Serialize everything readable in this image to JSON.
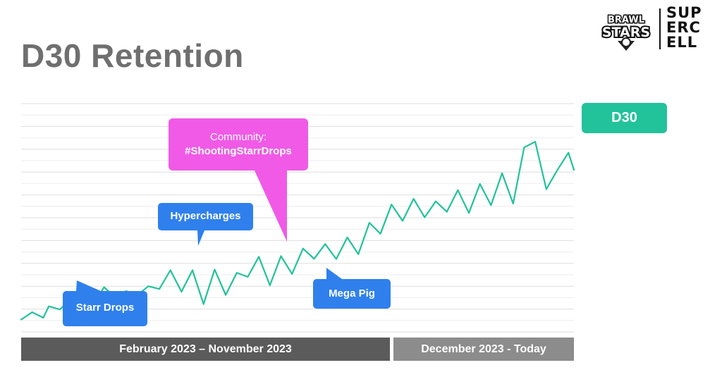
{
  "title": "D30 Retention",
  "logos": {
    "brawl_stars": [
      "BRAWL",
      "STARS"
    ],
    "supercell": [
      "SUP",
      "ERC",
      "ELL"
    ]
  },
  "legend": {
    "label": "D30",
    "color": "#22c29a"
  },
  "callouts": [
    {
      "id": "hypercharges",
      "text": "Hypercharges",
      "color": "#2f80ed"
    },
    {
      "id": "community",
      "line1": "Community:",
      "line2": "#ShootingStarrDrops",
      "color": "#f05ae6"
    },
    {
      "id": "starr-drops",
      "text": "Starr Drops",
      "color": "#2f80ed"
    },
    {
      "id": "mega-pig",
      "text": "Mega Pig",
      "color": "#2f80ed"
    }
  ],
  "periods": [
    {
      "label": "February 2023 – November 2023",
      "color": "#5b5b5b"
    },
    {
      "label": "December 2023 - Today",
      "color": "#8c8c8c"
    }
  ],
  "chart_data": {
    "type": "line",
    "title": "D30 Retention",
    "xlabel": "",
    "ylabel": "",
    "yticks_shown": false,
    "ylim": [
      0,
      100
    ],
    "grid": true,
    "legend_position": "right",
    "series": [
      {
        "name": "D30",
        "color": "#22c29a",
        "x": [
          0,
          2,
          4,
          5,
          7,
          9,
          11,
          13,
          15,
          17,
          19,
          21,
          23,
          25,
          27,
          29,
          31,
          33,
          35,
          37,
          39,
          41,
          43,
          45,
          47,
          49,
          51,
          53,
          55,
          57,
          59,
          61,
          63,
          65,
          67,
          69,
          71,
          73,
          75,
          77,
          79,
          81,
          83,
          85,
          87,
          89,
          91,
          93,
          95,
          97,
          99,
          100
        ],
        "values": [
          5.4,
          8.6,
          6.2,
          11.2,
          9.8,
          14.3,
          10.7,
          12.0,
          19.6,
          15.2,
          17.9,
          16.0,
          20.0,
          18.8,
          27.0,
          17.6,
          27.0,
          12.2,
          27.3,
          16.2,
          25.9,
          24.1,
          32.9,
          20.4,
          33.2,
          25.4,
          36.5,
          32.0,
          38.5,
          31.9,
          41.4,
          34.0,
          47.8,
          43.0,
          55.8,
          48.6,
          58.3,
          50.2,
          57.2,
          52.6,
          62.1,
          52.1,
          64.8,
          55.5,
          69.5,
          56.2,
          80.8,
          83.3,
          62.5,
          70.9,
          78.5,
          71.0
        ]
      }
    ]
  }
}
